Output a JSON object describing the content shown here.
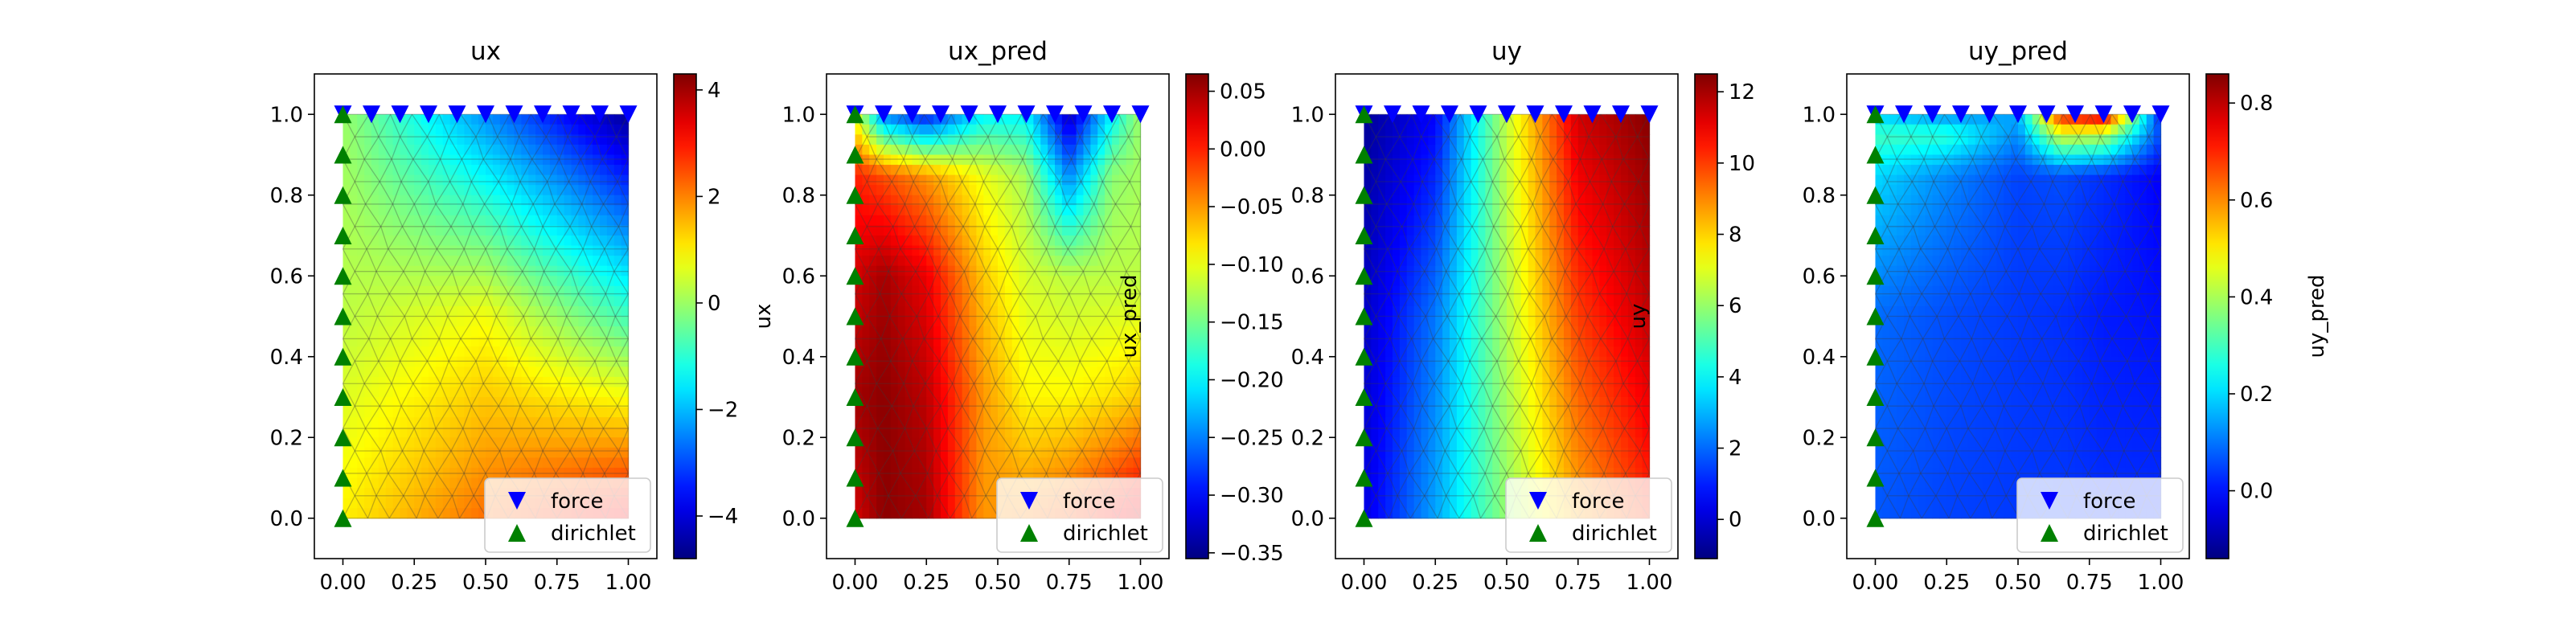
{
  "figure": {
    "legend_entries": [
      {
        "label": "force",
        "marker": "triangle-down",
        "color": "#0000ff"
      },
      {
        "label": "dirichlet",
        "marker": "triangle-up",
        "color": "#008000"
      }
    ]
  },
  "chart_data": [
    {
      "type": "heatmap",
      "title": "ux",
      "xlabel": "",
      "ylabel": "",
      "colorbar_label": "",
      "colormap": "jet",
      "xlim": [
        -0.1,
        1.1
      ],
      "ylim": [
        -0.1,
        1.1
      ],
      "x_ticks": [
        0.0,
        0.25,
        0.5,
        0.75,
        1.0
      ],
      "x_tick_labels": [
        "0.00",
        "0.25",
        "0.50",
        "0.75",
        "1.00"
      ],
      "y_ticks": [
        0.0,
        0.2,
        0.4,
        0.6,
        0.8,
        1.0
      ],
      "y_tick_labels": [
        "0.0",
        "0.2",
        "0.4",
        "0.6",
        "0.8",
        "1.0"
      ],
      "color_range": [
        -4.8,
        4.3
      ],
      "colorbar_ticks": [
        -4,
        -2,
        0,
        2,
        4
      ],
      "colorbar_tick_labels": [
        "−4",
        "−2",
        "0",
        "2",
        "4"
      ],
      "field": {
        "x": [
          0.0,
          0.5,
          1.0
        ],
        "y": [
          0.0,
          0.5,
          1.0
        ],
        "values": [
          [
            1.0,
            2.2,
            3.3
          ],
          [
            0.3,
            0.8,
            -0.8
          ],
          [
            0.0,
            -2.4,
            -4.6
          ]
        ]
      },
      "legend_location": "lower right"
    },
    {
      "type": "heatmap",
      "title": "ux_pred",
      "xlabel": "",
      "ylabel": "ux",
      "colorbar_label": "ux_pred",
      "colormap": "jet",
      "xlim": [
        -0.1,
        1.1
      ],
      "ylim": [
        -0.1,
        1.1
      ],
      "x_ticks": [
        0.0,
        0.25,
        0.5,
        0.75,
        1.0
      ],
      "x_tick_labels": [
        "0.00",
        "0.25",
        "0.50",
        "0.75",
        "1.00"
      ],
      "y_ticks": [
        0.0,
        0.2,
        0.4,
        0.6,
        0.8,
        1.0
      ],
      "y_tick_labels": [
        "0.0",
        "0.2",
        "0.4",
        "0.6",
        "0.8",
        "1.0"
      ],
      "color_range": [
        -0.355,
        0.065
      ],
      "colorbar_ticks": [
        0.05,
        0.0,
        -0.05,
        -0.1,
        -0.15,
        -0.2,
        -0.25,
        -0.3,
        -0.35
      ],
      "colorbar_tick_labels": [
        "0.05",
        "0.00",
        "−0.05",
        "−0.10",
        "−0.15",
        "−0.20",
        "−0.25",
        "−0.30",
        "−0.35"
      ],
      "field": {
        "x": [
          0.0,
          0.1,
          0.25,
          0.45,
          0.6,
          0.75,
          0.9,
          1.0
        ],
        "y": [
          0.0,
          0.3,
          0.6,
          0.85,
          1.0
        ],
        "values": [
          [
            0.03,
            0.06,
            0.05,
            -0.05,
            -0.04,
            -0.02,
            0.01,
            0.03
          ],
          [
            0.05,
            0.06,
            0.04,
            -0.05,
            -0.09,
            -0.09,
            -0.08,
            -0.07
          ],
          [
            0.03,
            0.05,
            0.02,
            -0.07,
            -0.11,
            -0.12,
            -0.12,
            -0.12
          ],
          [
            0.0,
            -0.02,
            -0.05,
            -0.1,
            -0.13,
            -0.25,
            -0.14,
            -0.13
          ],
          [
            -0.1,
            -0.25,
            -0.3,
            -0.2,
            -0.2,
            -0.33,
            -0.2,
            -0.13
          ]
        ]
      },
      "legend_location": "lower right"
    },
    {
      "type": "heatmap",
      "title": "uy",
      "xlabel": "",
      "ylabel": "",
      "colorbar_label": "uy",
      "colormap": "jet",
      "xlim": [
        -0.1,
        1.1
      ],
      "ylim": [
        -0.1,
        1.1
      ],
      "x_ticks": [
        0.0,
        0.25,
        0.5,
        0.75,
        1.0
      ],
      "x_tick_labels": [
        "0.00",
        "0.25",
        "0.50",
        "0.75",
        "1.00"
      ],
      "y_ticks": [
        0.0,
        0.2,
        0.4,
        0.6,
        0.8,
        1.0
      ],
      "y_tick_labels": [
        "0.0",
        "0.2",
        "0.4",
        "0.6",
        "0.8",
        "1.0"
      ],
      "color_range": [
        -1.1,
        12.5
      ],
      "colorbar_ticks": [
        0,
        2,
        4,
        6,
        8,
        10,
        12
      ],
      "colorbar_tick_labels": [
        "0",
        "2",
        "4",
        "6",
        "8",
        "10",
        "12"
      ],
      "field": {
        "x": [
          0.0,
          0.25,
          0.5,
          0.75,
          1.0
        ],
        "y": [
          0.0,
          0.5,
          1.0
        ],
        "values": [
          [
            0.2,
            2.8,
            6.0,
            8.6,
            10.2
          ],
          [
            -0.2,
            2.2,
            6.4,
            10.0,
            11.6
          ],
          [
            -0.8,
            0.6,
            6.6,
            11.4,
            12.4
          ]
        ]
      },
      "legend_location": "lower right"
    },
    {
      "type": "heatmap",
      "title": "uy_pred",
      "xlabel": "",
      "ylabel": "",
      "colorbar_label": "uy_pred",
      "colormap": "jet",
      "xlim": [
        -0.1,
        1.1
      ],
      "ylim": [
        -0.1,
        1.1
      ],
      "x_ticks": [
        0.0,
        0.25,
        0.5,
        0.75,
        1.0
      ],
      "x_tick_labels": [
        "0.00",
        "0.25",
        "0.50",
        "0.75",
        "1.00"
      ],
      "y_ticks": [
        0.0,
        0.2,
        0.4,
        0.6,
        0.8,
        1.0
      ],
      "y_tick_labels": [
        "0.0",
        "0.2",
        "0.4",
        "0.6",
        "0.8",
        "1.0"
      ],
      "color_range": [
        -0.14,
        0.86
      ],
      "colorbar_ticks": [
        0.0,
        0.2,
        0.4,
        0.6,
        0.8
      ],
      "colorbar_tick_labels": [
        "0.0",
        "0.2",
        "0.4",
        "0.6",
        "0.8"
      ],
      "field": {
        "x": [
          0.0,
          0.25,
          0.5,
          0.65,
          0.8,
          1.0
        ],
        "y": [
          0.0,
          0.5,
          0.85,
          0.95,
          1.0
        ],
        "values": [
          [
            0.07,
            0.05,
            0.04,
            0.04,
            0.03,
            0.03
          ],
          [
            0.09,
            0.06,
            0.04,
            0.03,
            0.01,
            0.0
          ],
          [
            0.2,
            0.12,
            0.05,
            0.06,
            0.03,
            -0.02
          ],
          [
            0.3,
            0.28,
            0.12,
            0.45,
            0.42,
            0.05
          ],
          [
            0.18,
            0.12,
            0.15,
            0.72,
            0.8,
            0.0
          ]
        ]
      },
      "legend_location": "lower right"
    }
  ],
  "boundary_markers": {
    "force": {
      "y": 1.0,
      "x": [
        0.0,
        0.1,
        0.2,
        0.3,
        0.4,
        0.5,
        0.6,
        0.7,
        0.8,
        0.9,
        1.0
      ]
    },
    "dirichlet": {
      "x": 0.0,
      "y": [
        0.0,
        0.1,
        0.2,
        0.3,
        0.4,
        0.5,
        0.6,
        0.7,
        0.8,
        0.9,
        1.0
      ]
    }
  }
}
